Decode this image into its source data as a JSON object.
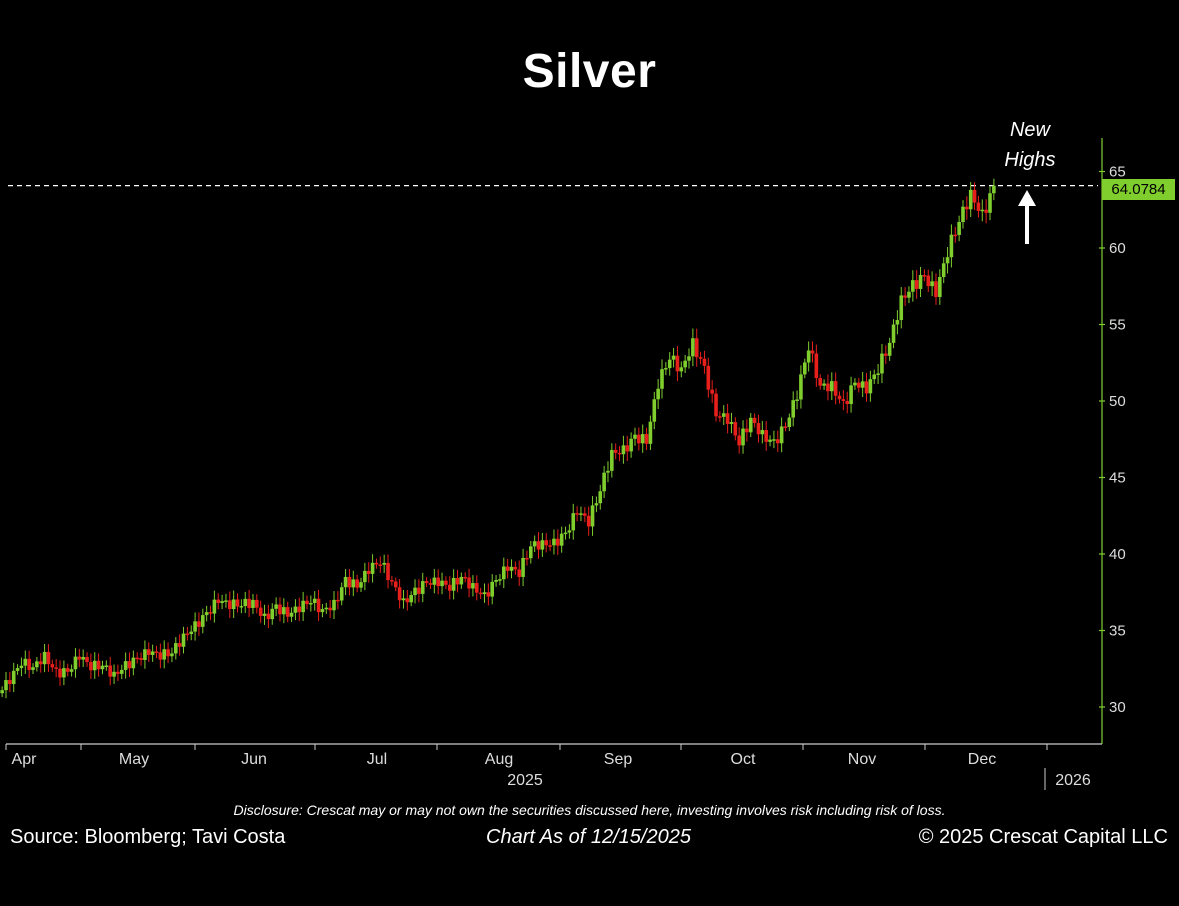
{
  "header": {
    "title": "Silver"
  },
  "annotation": {
    "line1": "New",
    "line2": "Highs"
  },
  "price_label": "64.0784",
  "footer": {
    "disclosure": "Disclosure: Crescat may or may not own the securities discussed here, investing involves risk including risk of loss.",
    "source": "Source: Bloomberg; Tavi Costa",
    "as_of": "Chart As of 12/15/2025",
    "copyright": "© 2025 Crescat Capital LLC"
  },
  "colors": {
    "background": "#000000",
    "up": "#7fce2e",
    "down": "#e8201c",
    "axis": "#7fce2e",
    "text": "#ffffff"
  },
  "chart_data": {
    "type": "candlestick",
    "title": "Silver",
    "y_ticks": [
      30,
      35,
      40,
      45,
      50,
      55,
      60,
      65
    ],
    "ylim": [
      27.5,
      66.5
    ],
    "x_ticks": [
      "Apr",
      "May",
      "Jun",
      "Jul",
      "Aug",
      "Sep",
      "Oct",
      "Nov",
      "Dec"
    ],
    "year_labels": [
      "2025",
      "2026"
    ],
    "last_price": 64.0784,
    "reference_line": {
      "value": 64.0784,
      "style": "dashed"
    },
    "series": [
      {
        "weekly_closes": [
          31.5,
          32.7,
          32.6,
          33.6,
          32.5,
          32.3,
          33.1,
          32.4,
          32.7,
          32.3,
          33.0,
          33.2,
          33.4,
          33.1,
          33.5,
          34.8,
          35.6,
          36.2,
          36.8,
          36.4,
          36.6,
          37.0,
          36.1,
          36.7,
          35.9,
          36.2,
          36.8,
          36.4,
          37.0,
          38.5,
          37.8,
          38.7,
          39.3,
          38.2,
          37.1,
          37.8,
          38.1,
          37.9,
          37.6,
          38.5,
          38.1,
          37.5,
          38.3,
          38.9,
          38.5,
          40.5,
          40.9,
          41.0,
          41.4,
          42.6,
          41.8,
          44.1,
          46.8,
          47.1,
          47.8,
          47.2,
          50.8,
          52.7,
          52.2,
          54.1,
          52.3,
          49.0,
          48.5,
          47.1,
          48.9,
          48.1,
          47.5,
          48.3,
          50.1,
          53.3,
          51.0,
          51.3,
          50.0,
          51.2,
          50.5,
          51.8,
          53.8,
          56.9,
          57.9,
          58.2,
          56.8,
          59.4,
          61.7,
          63.8,
          62.5,
          64.0784
        ]
      }
    ]
  }
}
